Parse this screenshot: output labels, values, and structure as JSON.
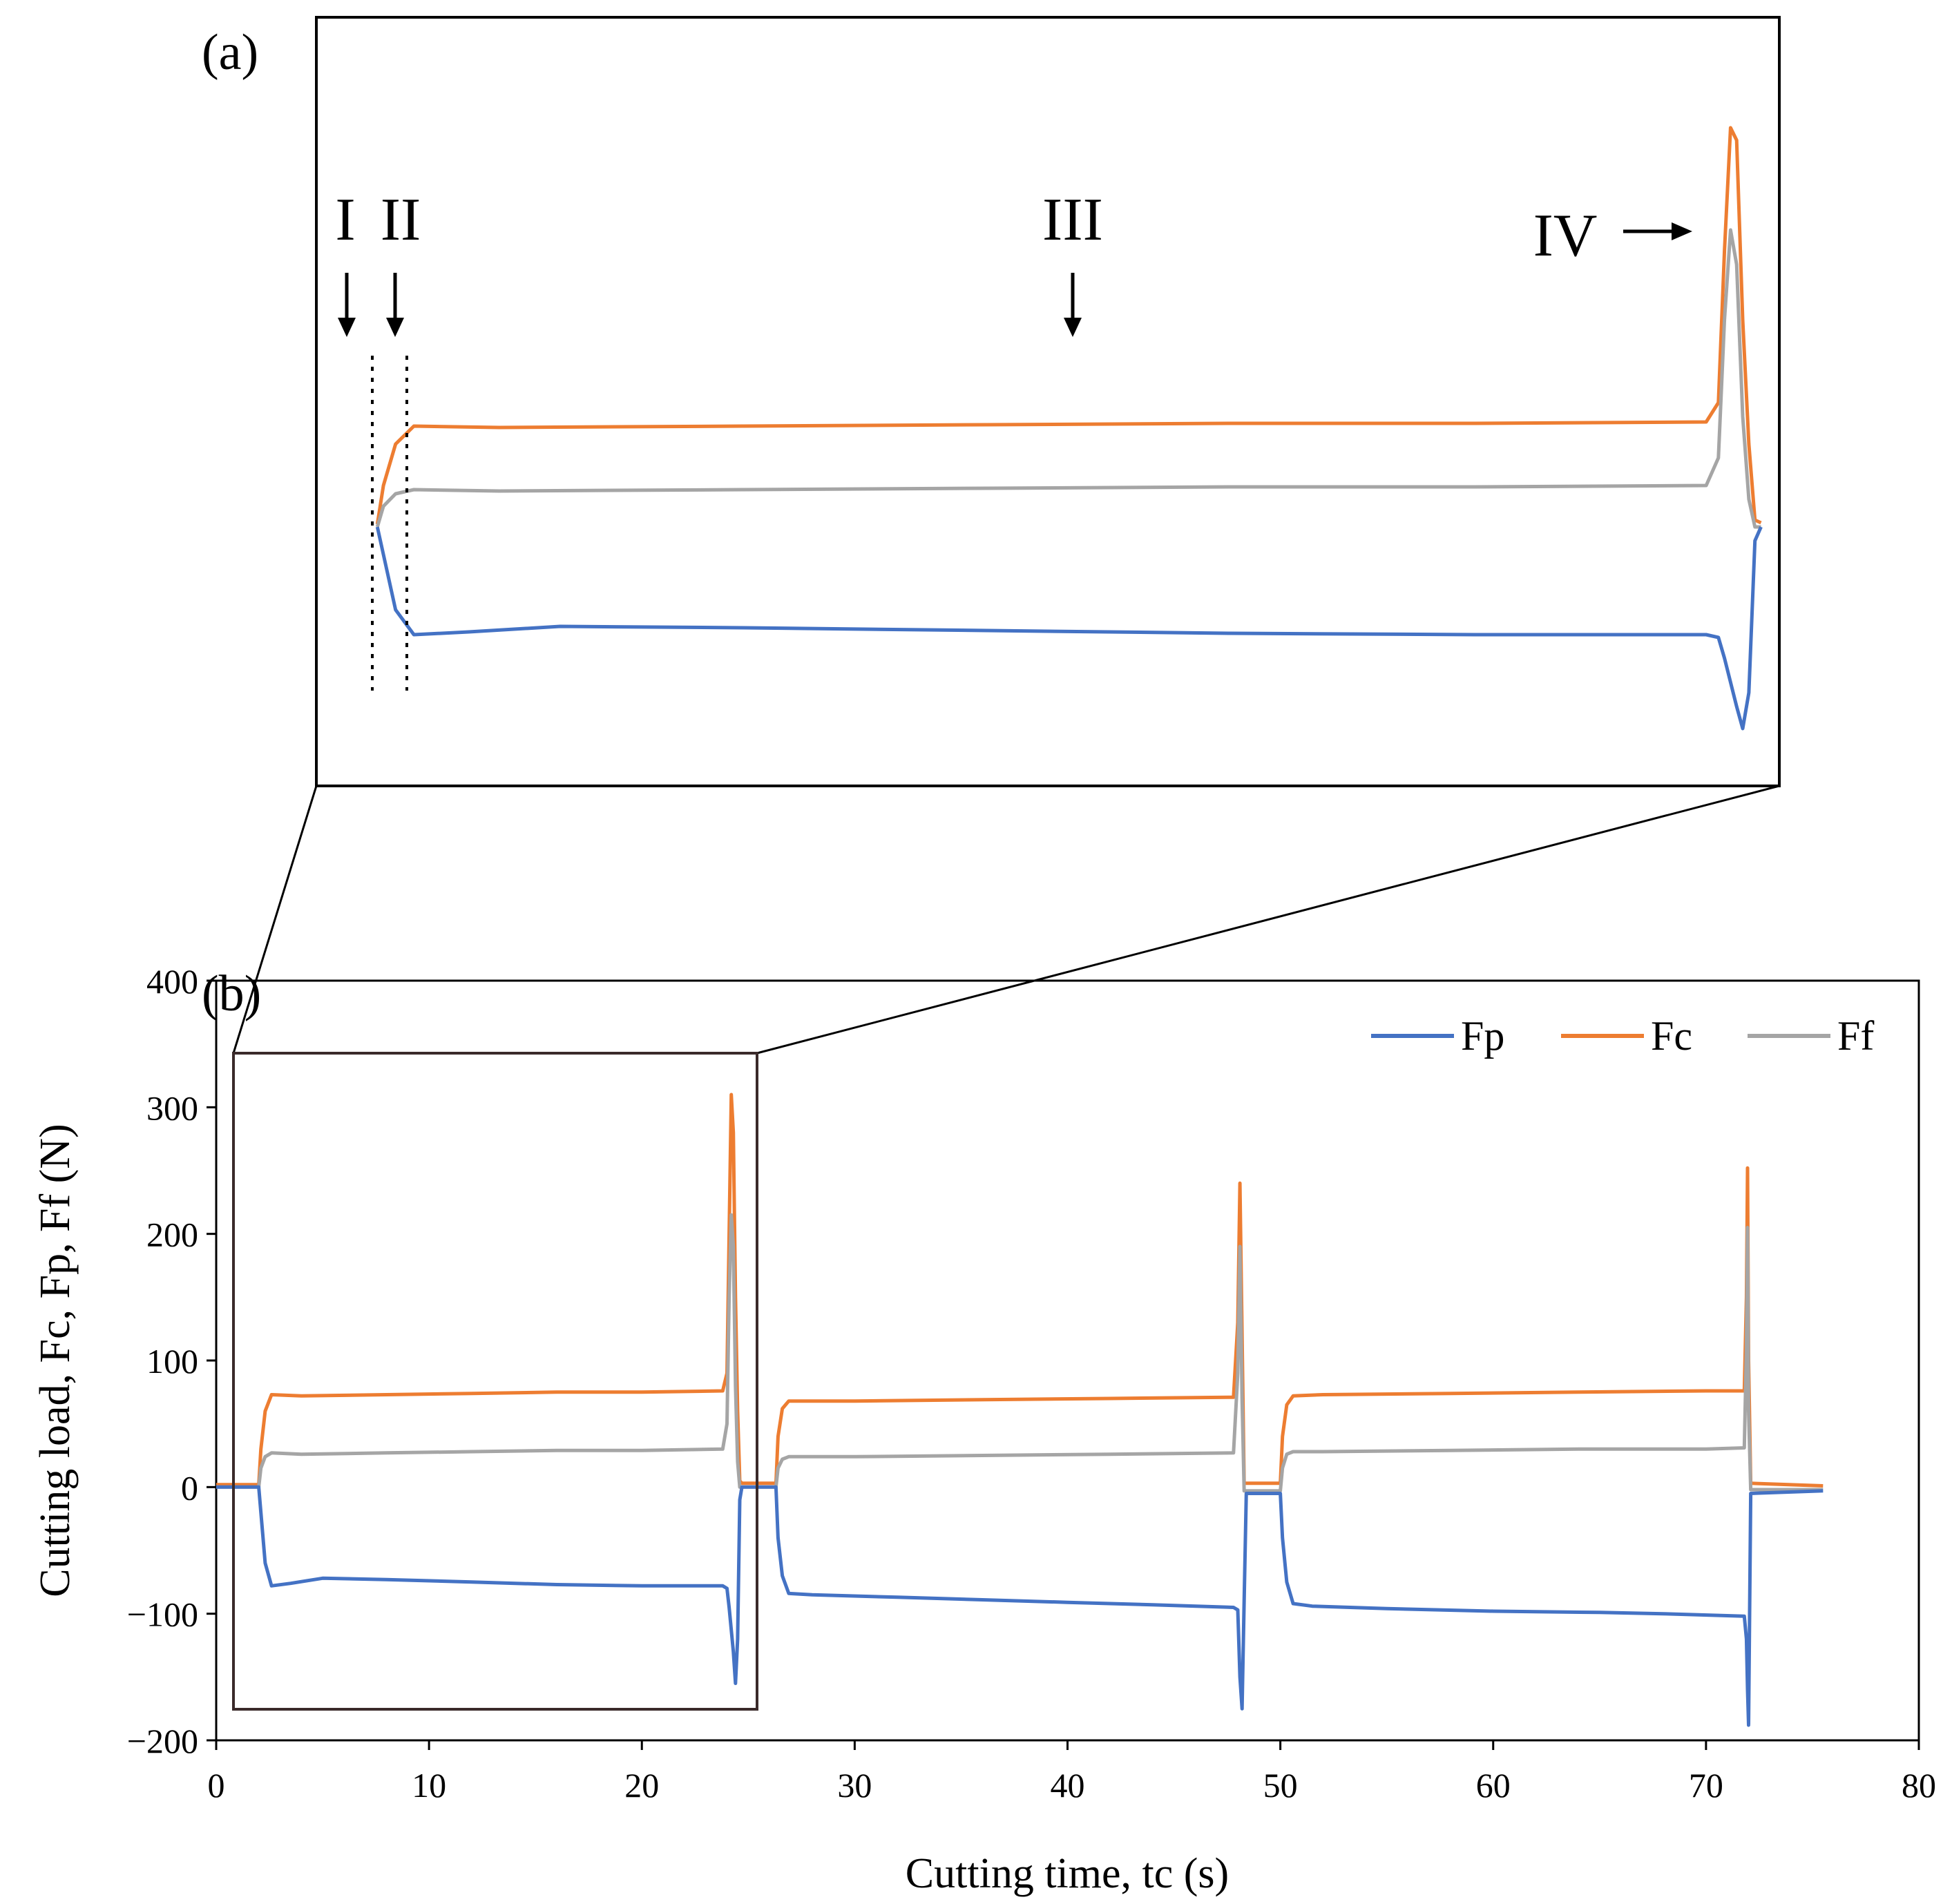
{
  "panel_a": {
    "label": "(a)",
    "stage_labels": [
      "I",
      "II",
      "III",
      "IV"
    ]
  },
  "panel_b": {
    "label": "(b)"
  },
  "chart_data": {
    "type": "line",
    "title": "",
    "xlabel": "Cutting time, tc (s)",
    "ylabel": "Cutting load, Fc, Fp, Ff (N)",
    "xlim": [
      0,
      80
    ],
    "ylim": [
      -200,
      400
    ],
    "xticks": [
      0,
      10,
      20,
      30,
      40,
      50,
      60,
      70,
      80
    ],
    "yticks": [
      -200,
      -100,
      0,
      100,
      200,
      300,
      400
    ],
    "ytick_labels": [
      "−200",
      "−100",
      "0",
      "100",
      "200",
      "300",
      "400"
    ],
    "xtick_labels": [
      "0",
      "10",
      "20",
      "30",
      "40",
      "50",
      "60",
      "70",
      "80"
    ],
    "legend_position": "top-right",
    "series": [
      {
        "name": "Fp",
        "color": "#4472c4",
        "x": [
          0,
          2.0,
          2.1,
          2.3,
          2.6,
          3.5,
          5,
          8,
          12,
          16,
          20,
          23.8,
          24.0,
          24.1,
          24.3,
          24.4,
          24.5,
          24.6,
          24.7,
          26.3,
          26.4,
          26.6,
          26.9,
          28,
          32,
          36,
          40,
          44,
          47.8,
          48.0,
          48.1,
          48.2,
          48.3,
          48.4,
          50.0,
          50.1,
          50.3,
          50.6,
          51.5,
          55,
          60,
          65,
          68,
          71.8,
          71.9,
          71.95,
          72.0,
          72.1,
          75.5
        ],
        "y": [
          0,
          0,
          -20,
          -60,
          -78,
          -76,
          -72,
          -73,
          -75,
          -77,
          -78,
          -78,
          -80,
          -95,
          -130,
          -155,
          -120,
          -10,
          0,
          0,
          -40,
          -70,
          -84,
          -85,
          -87,
          -89,
          -91,
          -93,
          -95,
          -97,
          -150,
          -175,
          -90,
          -5,
          -5,
          -40,
          -75,
          -92,
          -94,
          -96,
          -98,
          -99,
          -100,
          -102,
          -120,
          -160,
          -188,
          -5,
          -3
        ]
      },
      {
        "name": "Fc",
        "color": "#ed7d31",
        "x": [
          0,
          2.0,
          2.1,
          2.3,
          2.6,
          4,
          8,
          12,
          16,
          20,
          23.8,
          24.0,
          24.1,
          24.2,
          24.3,
          24.4,
          24.5,
          24.6,
          24.7,
          26.3,
          26.4,
          26.6,
          26.9,
          30,
          36,
          42,
          47.8,
          48.0,
          48.1,
          48.2,
          48.3,
          48.4,
          50.0,
          50.1,
          50.3,
          50.6,
          52,
          58,
          64,
          70,
          71.8,
          71.9,
          71.95,
          72.0,
          72.1,
          75.5
        ],
        "y": [
          2,
          2,
          30,
          60,
          73,
          72,
          73,
          74,
          75,
          75,
          76,
          90,
          200,
          310,
          280,
          150,
          60,
          5,
          3,
          3,
          40,
          62,
          68,
          68,
          69,
          70,
          71,
          130,
          240,
          120,
          3,
          3,
          3,
          40,
          65,
          72,
          73,
          74,
          75,
          76,
          76,
          150,
          252,
          100,
          3,
          1
        ]
      },
      {
        "name": "Ff",
        "color": "#a5a5a5",
        "x": [
          0,
          2.0,
          2.1,
          2.3,
          2.6,
          4,
          8,
          12,
          16,
          20,
          23.8,
          24.0,
          24.1,
          24.2,
          24.3,
          24.4,
          24.5,
          24.6,
          24.7,
          26.3,
          26.4,
          26.6,
          26.9,
          30,
          36,
          42,
          47.8,
          48.0,
          48.1,
          48.2,
          48.3,
          48.4,
          50.0,
          50.1,
          50.3,
          50.6,
          52,
          58,
          64,
          70,
          71.8,
          71.9,
          71.95,
          72.0,
          72.1,
          75.5
        ],
        "y": [
          0,
          0,
          15,
          24,
          27,
          26,
          27,
          28,
          29,
          29,
          30,
          50,
          150,
          215,
          190,
          80,
          20,
          0,
          0,
          0,
          15,
          22,
          24,
          24,
          25,
          26,
          27,
          90,
          190,
          70,
          -3,
          -3,
          -3,
          15,
          26,
          28,
          28,
          29,
          30,
          30,
          31,
          110,
          205,
          60,
          -2,
          -2
        ]
      }
    ]
  }
}
